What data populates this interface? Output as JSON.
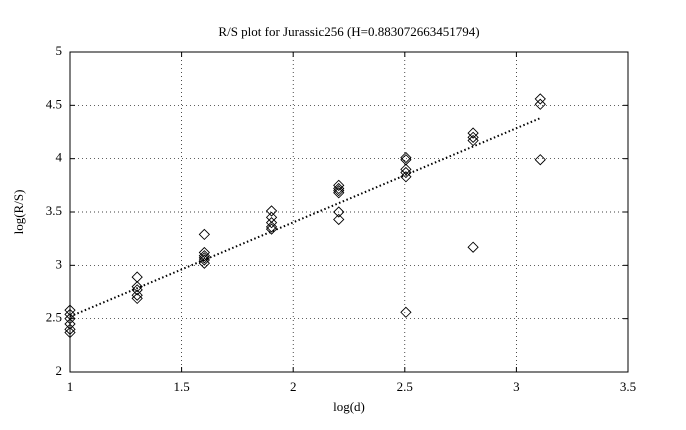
{
  "chart_data": {
    "type": "scatter",
    "title": "R/S plot for Jurassic256 (H=0.883072663451794)",
    "x_label": "log(d)",
    "y_label": "log(R/S)",
    "xlim": [
      1,
      3.5
    ],
    "ylim": [
      2,
      5
    ],
    "xticks": [
      1,
      1.5,
      2,
      2.5,
      3,
      3.5
    ],
    "yticks": [
      2,
      2.5,
      3,
      3.5,
      4,
      4.5,
      5
    ],
    "grid": true,
    "series": [
      {
        "color": "#000000",
        "marker": "diamond",
        "x": [
          1,
          1,
          1,
          1,
          1,
          1,
          1.301,
          1.301,
          1.301,
          1.301,
          1.301,
          1.602,
          1.602,
          1.602,
          1.602,
          1.602,
          1.602,
          1.903,
          1.903,
          1.903,
          1.903,
          1.903,
          2.204,
          2.204,
          2.204,
          2.204,
          2.204,
          2.204,
          2.505,
          2.505,
          2.505,
          2.505,
          2.505,
          2.505,
          2.806,
          2.806,
          2.806,
          2.806,
          3.107,
          3.107,
          3.107
        ],
        "values": [
          2.58,
          2.54,
          2.5,
          2.45,
          2.4,
          2.37,
          2.89,
          2.8,
          2.77,
          2.72,
          2.69,
          3.29,
          3.12,
          3.09,
          3.07,
          3.05,
          3.02,
          3.51,
          3.45,
          3.4,
          3.36,
          3.34,
          3.75,
          3.72,
          3.7,
          3.68,
          3.5,
          3.43,
          4.01,
          3.99,
          3.9,
          3.87,
          3.83,
          2.56,
          4.24,
          4.2,
          4.17,
          3.17,
          4.56,
          4.51,
          3.99
        ]
      },
      {
        "color": "#000000",
        "line": "dotted",
        "x": [
          1,
          3.107
        ],
        "values": [
          2.52,
          4.38
        ]
      }
    ]
  }
}
